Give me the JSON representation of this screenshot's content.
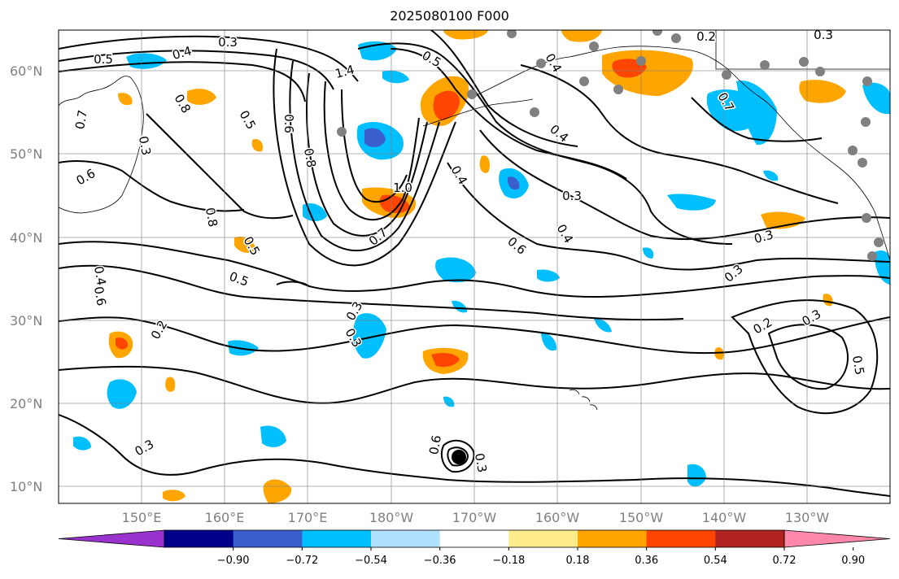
{
  "title": "2025080100 F000",
  "lat_labels": [
    "60°N",
    "50°N",
    "40°N",
    "30°N",
    "20°N",
    "10°N"
  ],
  "lon_labels": [
    "150°E",
    "160°E",
    "170°E",
    "180°W",
    "170°W",
    "160°W",
    "150°W",
    "140°W",
    "130°W"
  ],
  "colorbar": {
    "colors": [
      "#9a32cd",
      "#00008b",
      "#3a5fcd",
      "#00bfff",
      "#b0e2ff",
      "#ffffff",
      "#ffec8b",
      "#ffa500",
      "#ff4500",
      "#b22222",
      "#ff88aa"
    ],
    "ticks": [
      "−0.90",
      "−0.72",
      "−0.54",
      "−0.36",
      "−0.18",
      "0.18",
      "0.36",
      "0.54",
      "0.72",
      "0.90"
    ]
  },
  "contour_labels": [
    "0.3",
    "0.4",
    "0.5",
    "1.4",
    "0.5",
    "0.4",
    "0.2",
    "0.3",
    "0.8",
    "0.5",
    "0.6",
    "0.8",
    "0.7",
    "0.6",
    "0.3",
    "0.7",
    "0.8",
    "1.0",
    "0.5",
    "0.7",
    "0.4",
    "0.6",
    "0.5",
    "0.6",
    "0.4",
    "0.3",
    "0.2",
    "0.3",
    "0.3",
    "0.4",
    "0.4",
    "0.3",
    "0.3",
    "0.2",
    "0.3",
    "0.5",
    "0.6",
    "0.3",
    "0.3"
  ],
  "colors": {
    "land_outline": "#000000",
    "grid": "#808080",
    "contour": "#000000",
    "marker_gray": "#808080",
    "marker_black": "#000000"
  }
}
